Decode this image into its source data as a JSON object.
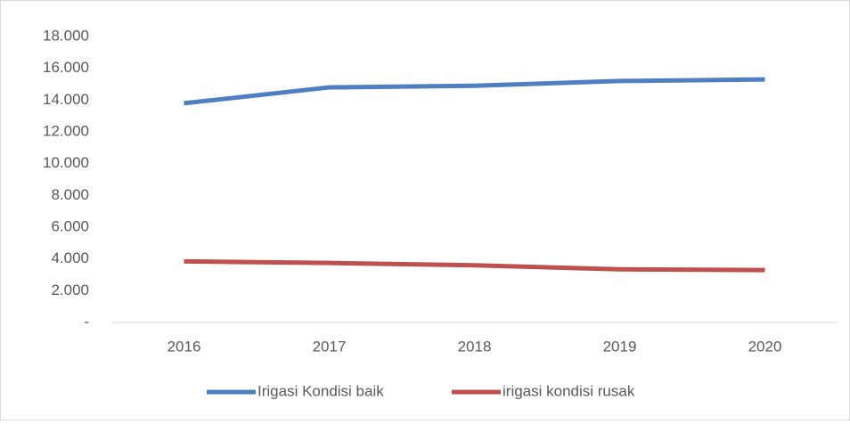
{
  "chart_data": {
    "type": "line",
    "categories": [
      "2016",
      "2017",
      "2018",
      "2019",
      "2020"
    ],
    "series": [
      {
        "name": "Irigasi Kondisi baik",
        "color": "#4f7fc0",
        "values": [
          13800,
          14800,
          14900,
          15200,
          15300
        ]
      },
      {
        "name": "irigasi kondisi rusak",
        "color": "#c0504d",
        "values": [
          3850,
          3750,
          3600,
          3350,
          3300
        ]
      }
    ],
    "ylim": [
      0,
      18000
    ],
    "yticks": [
      {
        "value": 0,
        "label": "-"
      },
      {
        "value": 2000,
        "label": "2.000"
      },
      {
        "value": 4000,
        "label": "4.000"
      },
      {
        "value": 6000,
        "label": "6.000"
      },
      {
        "value": 8000,
        "label": "8.000"
      },
      {
        "value": 10000,
        "label": "10.000"
      },
      {
        "value": 12000,
        "label": "12.000"
      },
      {
        "value": 14000,
        "label": "14.000"
      },
      {
        "value": 16000,
        "label": "16.000"
      },
      {
        "value": 18000,
        "label": "18.000"
      }
    ],
    "legend": "bottom"
  }
}
